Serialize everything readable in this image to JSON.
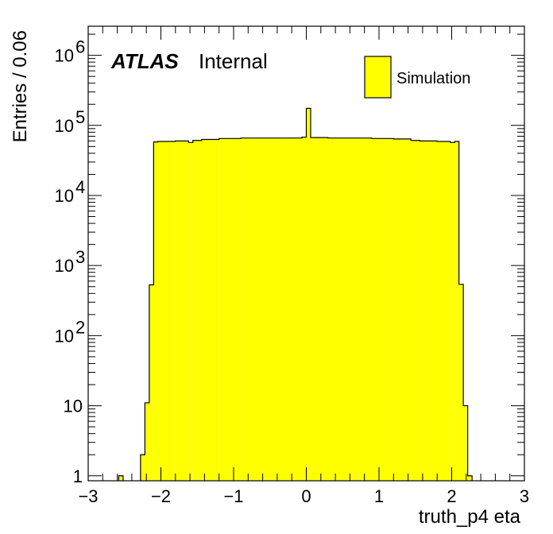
{
  "chart_data": {
    "type": "bar",
    "subtype": "histogram",
    "xlabel": "truth_p4 eta",
    "ylabel": "Entries / 0.06",
    "xlim": [
      -3,
      3
    ],
    "ylim": [
      0.85,
      2600000
    ],
    "yscale": "log",
    "bin_width": 0.06,
    "x_ticks": [
      "−3",
      "−2",
      "−1",
      "0",
      "1",
      "2",
      "3"
    ],
    "y_ticks": [
      {
        "base": "1",
        "exp": ""
      },
      {
        "base": "10",
        "exp": ""
      },
      {
        "base": "10",
        "exp": "2"
      },
      {
        "base": "10",
        "exp": "3"
      },
      {
        "base": "10",
        "exp": "4"
      },
      {
        "base": "10",
        "exp": "5"
      },
      {
        "base": "10",
        "exp": "6"
      }
    ],
    "series": [
      {
        "name": "Simulation",
        "color": "#ffff00",
        "edge_color": "#000000",
        "bins": [
          {
            "lo": -2.58,
            "hi": -2.52,
            "value": 1
          },
          {
            "lo": -2.28,
            "hi": -2.22,
            "value": 2
          },
          {
            "lo": -2.22,
            "hi": -2.16,
            "value": 11
          },
          {
            "lo": -2.16,
            "hi": -2.1,
            "value": 530
          },
          {
            "lo": -2.1,
            "hi": -2.04,
            "value": 58000
          },
          {
            "lo": -2.04,
            "hi": -1.8,
            "value": 59000
          },
          {
            "lo": -1.8,
            "hi": -1.62,
            "value": 60000
          },
          {
            "lo": -1.62,
            "hi": -1.56,
            "value": 57000
          },
          {
            "lo": -1.56,
            "hi": -1.44,
            "value": 61000
          },
          {
            "lo": -1.44,
            "hi": -1.2,
            "value": 63000
          },
          {
            "lo": -1.2,
            "hi": -0.9,
            "value": 65000
          },
          {
            "lo": -0.9,
            "hi": -0.06,
            "value": 66000
          },
          {
            "lo": -0.06,
            "hi": 0.0,
            "value": 68000
          },
          {
            "lo": 0.0,
            "hi": 0.06,
            "value": 175000
          },
          {
            "lo": 0.06,
            "hi": 0.3,
            "value": 67000
          },
          {
            "lo": 0.3,
            "hi": 0.9,
            "value": 66000
          },
          {
            "lo": 0.9,
            "hi": 1.2,
            "value": 65000
          },
          {
            "lo": 1.2,
            "hi": 1.44,
            "value": 64000
          },
          {
            "lo": 1.44,
            "hi": 1.56,
            "value": 61000
          },
          {
            "lo": 1.56,
            "hi": 1.8,
            "value": 60000
          },
          {
            "lo": 1.8,
            "hi": 1.98,
            "value": 59000
          },
          {
            "lo": 1.98,
            "hi": 2.04,
            "value": 57000
          },
          {
            "lo": 2.04,
            "hi": 2.1,
            "value": 59000
          },
          {
            "lo": 2.1,
            "hi": 2.16,
            "value": 540
          },
          {
            "lo": 2.16,
            "hi": 2.22,
            "value": 10
          },
          {
            "lo": 2.22,
            "hi": 2.28,
            "value": 1
          }
        ]
      }
    ],
    "legend": {
      "position": "top-right",
      "entries": [
        "Simulation"
      ]
    },
    "annotations": {
      "atlas": "ATLAS",
      "label": "Internal"
    },
    "grid": false
  }
}
